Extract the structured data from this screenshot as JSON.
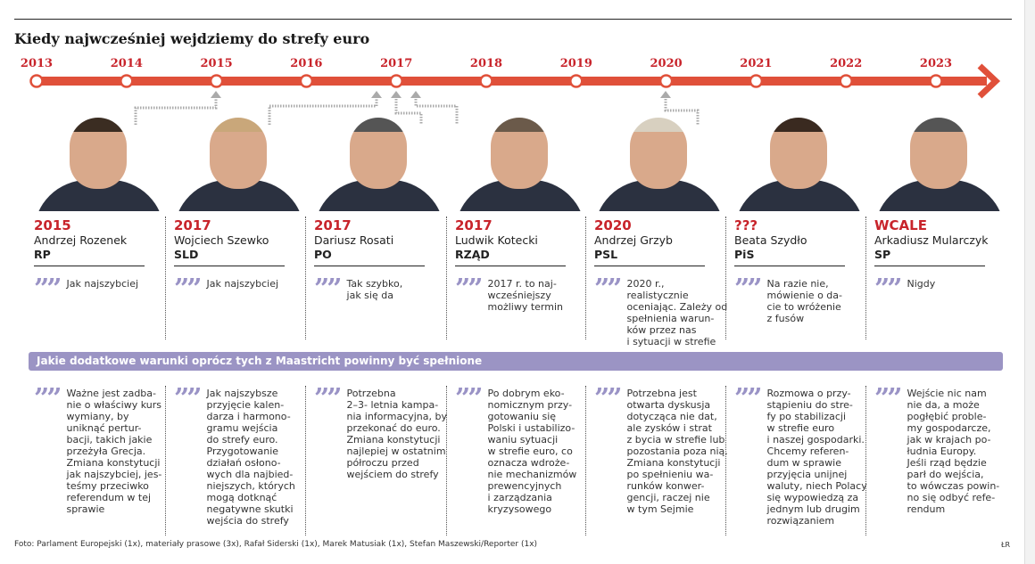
{
  "title": "Kiedy najwcześniej wejdziemy do strefy euro",
  "colors": {
    "accent": "#e0503a",
    "year_text": "#c8242b",
    "band": "#9b94c4",
    "quote_mark": "#9a93c6"
  },
  "timeline": {
    "years": [
      "2013",
      "2014",
      "2015",
      "2016",
      "2017",
      "2018",
      "2019",
      "2020",
      "2021",
      "2022",
      "2023"
    ]
  },
  "people": [
    {
      "year": "2015",
      "name": "Andrzej Rozenek",
      "party": "RP",
      "quote": "Jak najszybciej",
      "conditions": "Ważne jest zadba-\nnie o właściwy kurs\nwymiany, by\nuniknąć pertur-\nbacji, takich jakie\nprzeżyła Grecja.\nZmiana konstytucji\njak najszybciej, jes-\nteśmy przeciwko\nreferendum w tej\nsprawie"
    },
    {
      "year": "2017",
      "name": "Wojciech Szewko",
      "party": "SLD",
      "quote": "Jak najszybciej",
      "conditions": "Jak najszybsze\nprzyjęcie kalen-\ndarza i harmono-\ngramu wejścia\ndo strefy euro.\nPrzygotowanie\ndziałań osłono-\nwych dla najbied-\nniejszych, których\nmogą dotknąć\nnegatywne skutki\nwejścia do strefy"
    },
    {
      "year": "2017",
      "name": "Dariusz Rosati",
      "party": "PO",
      "quote": "Tak szybko,\njak się da",
      "conditions": "Potrzebna\n2–3- letnia kampa-\nnia informacyjna, by\nprzekonać do euro.\nZmiana konstytucji\nnajlepiej w ostatnim\npółroczu przed\nwejściem do strefy"
    },
    {
      "year": "2017",
      "name": "Ludwik Kotecki",
      "party": "RZĄD",
      "quote": "2017 r. to naj-\nwcześniejszy\nmożliwy termin",
      "conditions": "Po dobrym eko-\nnomicznym przy-\ngotowaniu się\nPolski i ustabilizo-\nwaniu sytuacji\nw strefie euro, co\noznacza wdroże-\nnie mechanizmów\nprewencyjnych\ni zarządzania\nkryzysowego"
    },
    {
      "year": "2020",
      "name": "Andrzej Grzyb",
      "party": "PSL",
      "quote": "2020 r., realistycznie\noceniając. Zależy od\nspełnienia warun-\nków przez nas\ni sytuacji w strefie",
      "conditions": "Potrzebna jest\notwarta dyskusja\ndotycząca nie dat,\nale zysków i strat\nz bycia w strefie lub\npozostania poza nią.\nZmiana konstytucji\npo spełnieniu wa-\nrunków konwer-\ngencji, raczej nie\nw tym Sejmie"
    },
    {
      "year": "???",
      "name": "Beata Szydło",
      "party": "PiS",
      "quote": "Na razie nie,\nmówienie o da-\ncie to wróżenie\nz fusów",
      "conditions": "Rozmowa o przy-\nstąpieniu do stre-\nfy po stabilizacji\nw strefie euro\ni naszej gospodarki.\nChcemy referen-\ndum w sprawie\nprzyjęcia unijnej\nwaluty, niech Polacy\nsię wypowiedzą za\njednym lub drugim\nrozwiązaniem"
    },
    {
      "year": "WCALE",
      "name": "Arkadiusz Mularczyk",
      "party": "SP",
      "quote": "Nigdy",
      "conditions": "Wejście nic nam\nnie da, a może\npogłębić proble-\nmy gospodarcze,\njak w krajach po-\nłudnia Europy.\nJeśli rząd będzie\nparł do wejścia,\nto wówczas powin-\nno się odbyć refe-\nrendum"
    }
  ],
  "band_title": "Jakie dodatkowe warunki oprócz tych z Maastricht powinny być spełnione",
  "footer": "Foto: Parlament Europejski (1x), materiały prasowe (3x), Rafał Siderski (1x), Marek Matusiak (1x), Stefan Maszewski/Reporter (1x)",
  "credit": "ŁR"
}
